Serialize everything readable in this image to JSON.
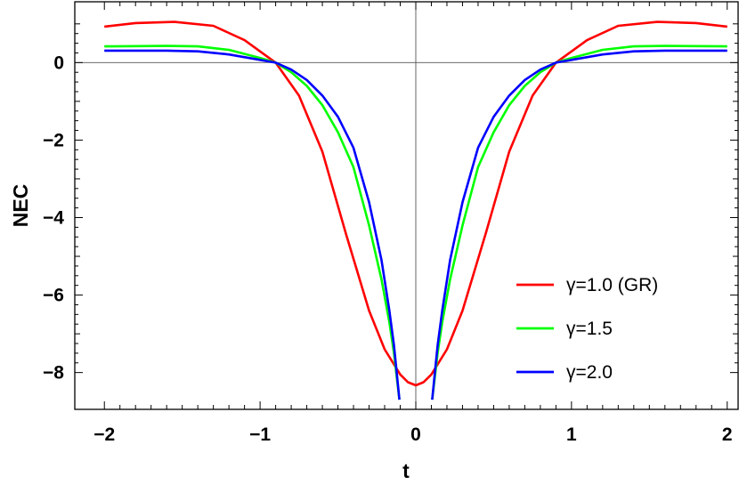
{
  "chart_data": {
    "type": "line",
    "title": "",
    "xlabel": "t",
    "ylabel": "NEC",
    "xlim": [
      -2.0,
      2.0
    ],
    "ylim": [
      -8.7,
      1.0
    ],
    "x_ticks": [
      -2,
      -1,
      0,
      1,
      2
    ],
    "x_tick_labels": [
      "−2",
      "−1",
      "0",
      "1",
      "2"
    ],
    "y_ticks": [
      0,
      -2,
      -4,
      -6,
      -8
    ],
    "y_tick_labels": [
      "0",
      "−2",
      "−4",
      "−6",
      "−8"
    ],
    "grid": false,
    "legend_position": "bottom-right",
    "series": [
      {
        "name": "γ=1.0 (GR)",
        "color": "#ff0000",
        "x": [
          -2.0,
          -1.8,
          -1.55,
          -1.3,
          -1.1,
          -0.9,
          -0.75,
          -0.6,
          -0.45,
          -0.3,
          -0.2,
          -0.1,
          -0.05,
          0.0,
          0.05,
          0.1,
          0.2,
          0.3,
          0.45,
          0.6,
          0.75,
          0.9,
          1.1,
          1.3,
          1.55,
          1.8,
          2.0
        ],
        "y": [
          0.93,
          1.02,
          1.05,
          0.95,
          0.58,
          0.0,
          -0.85,
          -2.3,
          -4.4,
          -6.4,
          -7.4,
          -8.05,
          -8.25,
          -8.33,
          -8.25,
          -8.05,
          -7.4,
          -6.4,
          -4.4,
          -2.3,
          -0.85,
          0.0,
          0.58,
          0.95,
          1.05,
          1.02,
          0.93
        ]
      },
      {
        "name": "γ=1.5",
        "color": "#00ff00",
        "x": [
          -2.0,
          -1.6,
          -1.4,
          -1.2,
          -1.0,
          -0.9,
          -0.8,
          -0.7,
          -0.6,
          -0.5,
          -0.4,
          -0.3,
          -0.22,
          -0.17,
          -0.14,
          -0.12,
          -0.105,
          0.105,
          0.12,
          0.14,
          0.17,
          0.22,
          0.3,
          0.4,
          0.5,
          0.6,
          0.7,
          0.8,
          0.9,
          1.0,
          1.2,
          1.4,
          1.6,
          2.0
        ],
        "y": [
          0.42,
          0.43,
          0.42,
          0.33,
          0.12,
          0.0,
          -0.25,
          -0.6,
          -1.1,
          -1.8,
          -2.7,
          -4.2,
          -5.6,
          -6.7,
          -7.5,
          -8.2,
          -8.7,
          -8.7,
          -8.2,
          -7.5,
          -6.7,
          -5.6,
          -4.2,
          -2.7,
          -1.8,
          -1.1,
          -0.6,
          -0.25,
          0.0,
          0.12,
          0.33,
          0.42,
          0.43,
          0.42
        ]
      },
      {
        "name": "γ=2.0",
        "color": "#0000ff",
        "x": [
          -2.0,
          -1.6,
          -1.4,
          -1.2,
          -1.0,
          -0.9,
          -0.8,
          -0.7,
          -0.6,
          -0.5,
          -0.4,
          -0.3,
          -0.22,
          -0.17,
          -0.14,
          -0.12,
          -0.105,
          0.105,
          0.12,
          0.14,
          0.17,
          0.22,
          0.3,
          0.4,
          0.5,
          0.6,
          0.7,
          0.8,
          0.9,
          1.0,
          1.2,
          1.4,
          1.6,
          2.0
        ],
        "y": [
          0.31,
          0.31,
          0.29,
          0.21,
          0.07,
          0.0,
          -0.18,
          -0.45,
          -0.85,
          -1.4,
          -2.2,
          -3.6,
          -5.1,
          -6.4,
          -7.3,
          -8.1,
          -8.7,
          -8.7,
          -8.1,
          -7.3,
          -6.4,
          -5.1,
          -3.6,
          -2.2,
          -1.4,
          -0.85,
          -0.45,
          -0.18,
          0.0,
          0.07,
          0.21,
          0.29,
          0.31,
          0.31
        ]
      }
    ]
  }
}
